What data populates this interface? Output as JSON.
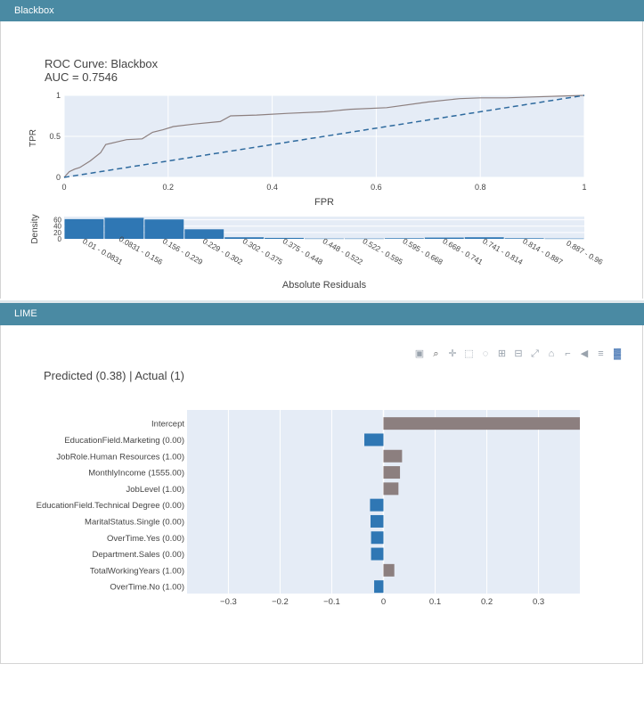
{
  "panels": {
    "blackbox": {
      "title": "Blackbox"
    },
    "lime": {
      "title": "LIME"
    }
  },
  "toolbar": {
    "icons": [
      "camera-icon",
      "zoom-icon",
      "pan-icon",
      "box-select-icon",
      "lasso-icon",
      "zoom-in-icon",
      "zoom-out-icon",
      "autoscale-icon",
      "reset-icon",
      "spike-lines-icon",
      "hover-closest-icon",
      "hover-compare-icon",
      "plotly-logo-icon"
    ]
  },
  "chart_data": [
    {
      "type": "line",
      "title": "ROC Curve: Blackbox",
      "subtitle": "AUC = 0.7546",
      "xlabel": "FPR",
      "ylabel": "TPR",
      "xlim": [
        0,
        1
      ],
      "ylim": [
        0,
        1
      ],
      "x_ticks": [
        "0",
        "0.2",
        "0.4",
        "0.6",
        "0.8",
        "1"
      ],
      "y_ticks": [
        "0",
        "0.5",
        "1"
      ],
      "grid": true,
      "series": [
        {
          "style": "solid",
          "color": "#8c7f7f",
          "x": [
            0,
            0.01,
            0.02,
            0.03,
            0.05,
            0.07,
            0.08,
            0.1,
            0.12,
            0.15,
            0.17,
            0.19,
            0.21,
            0.25,
            0.3,
            0.32,
            0.37,
            0.43,
            0.5,
            0.55,
            0.62,
            0.7,
            0.76,
            0.8,
            0.85,
            0.9,
            0.95,
            1.0
          ],
          "y": [
            0.0,
            0.07,
            0.1,
            0.12,
            0.2,
            0.3,
            0.4,
            0.43,
            0.46,
            0.47,
            0.55,
            0.58,
            0.62,
            0.65,
            0.68,
            0.75,
            0.76,
            0.78,
            0.8,
            0.83,
            0.85,
            0.92,
            0.96,
            0.97,
            0.97,
            0.98,
            0.99,
            1.0
          ]
        },
        {
          "style": "dashed",
          "color": "#2e6a9e",
          "x": [
            0,
            1
          ],
          "y": [
            0,
            1
          ]
        }
      ]
    },
    {
      "type": "bar",
      "xlabel": "Absolute Residuals",
      "ylabel": "Density",
      "ylim": [
        0,
        70
      ],
      "y_ticks": [
        "60",
        "40",
        "20",
        "0"
      ],
      "color": "#2f77b4",
      "categories": [
        "0.01 - 0.0831",
        "0.0831 - 0.156",
        "0.156 - 0.229",
        "0.229 - 0.302",
        "0.302 - 0.375",
        "0.375 - 0.448",
        "0.448 - 0.522",
        "0.522 - 0.595",
        "0.595 - 0.668",
        "0.668 - 0.741",
        "0.741 - 0.814",
        "0.814 - 0.887",
        "0.887 - 0.96"
      ],
      "values": [
        62,
        66,
        61,
        30,
        5,
        3,
        1,
        1,
        2,
        4,
        5,
        2,
        1
      ]
    },
    {
      "type": "bar",
      "orientation": "horizontal",
      "title": "Predicted (0.38) | Actual (1)",
      "xlim": [
        -0.38,
        0.38
      ],
      "x_ticks": [
        -0.3,
        -0.2,
        -0.1,
        0,
        0.1,
        0.2,
        0.3
      ],
      "x_tick_labels": [
        "−0.3",
        "−0.2",
        "−0.1",
        "0",
        "0.1",
        "0.2",
        "0.3"
      ],
      "positive_color": "#8c7f7f",
      "negative_color": "#2f77b4",
      "categories": [
        "Intercept",
        "EducationField.Marketing (0.00)",
        "JobRole.Human Resources (1.00)",
        "MonthlyIncome (1555.00)",
        "JobLevel (1.00)",
        "EducationField.Technical Degree (0.00)",
        "MaritalStatus.Single (0.00)",
        "OverTime.Yes (0.00)",
        "Department.Sales (0.00)",
        "TotalWorkingYears (1.00)",
        "OverTime.No (1.00)"
      ],
      "values": [
        0.38,
        -0.037,
        0.036,
        0.032,
        0.029,
        -0.026,
        -0.025,
        -0.024,
        -0.024,
        0.021,
        -0.018
      ]
    }
  ]
}
